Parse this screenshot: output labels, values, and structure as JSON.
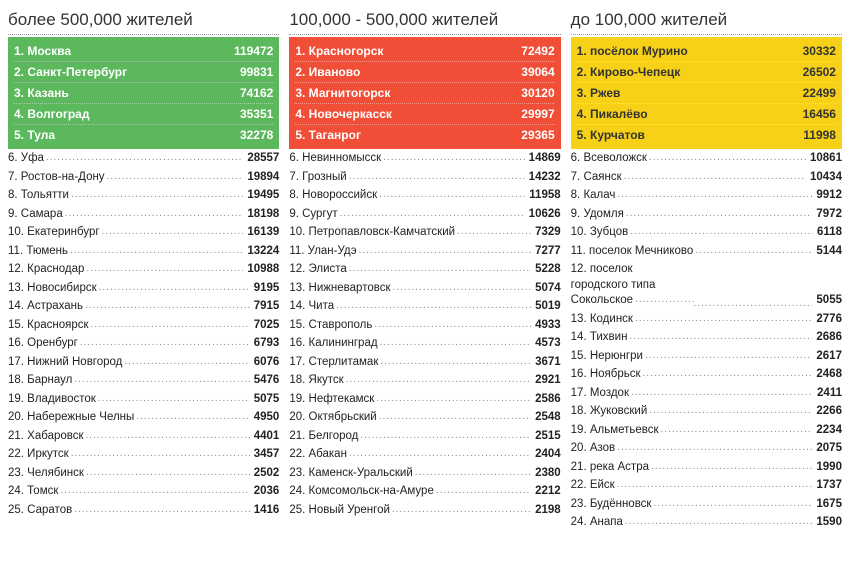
{
  "columns": [
    {
      "title": "более 500,000 жителей",
      "top_bg": "#5cb85c",
      "top_text": "#ffffff",
      "top5": [
        {
          "rank": "1.",
          "name": "Москва",
          "value": "119472"
        },
        {
          "rank": "2.",
          "name": "Санкт-Петербург",
          "value": "99831"
        },
        {
          "rank": "3.",
          "name": "Казань",
          "value": "74162"
        },
        {
          "rank": "4.",
          "name": "Волгоград",
          "value": "35351"
        },
        {
          "rank": "5.",
          "name": "Тула",
          "value": "32278"
        }
      ],
      "rest": [
        {
          "rank": "6.",
          "name": "Уфа",
          "value": "28557"
        },
        {
          "rank": "7.",
          "name": "Ростов-на-Дону",
          "value": "19894"
        },
        {
          "rank": "8.",
          "name": "Тольятти",
          "value": "19495"
        },
        {
          "rank": "9.",
          "name": "Самара",
          "value": "18198"
        },
        {
          "rank": "10.",
          "name": "Екатеринбург",
          "value": "16139"
        },
        {
          "rank": "11.",
          "name": "Тюмень",
          "value": "13224"
        },
        {
          "rank": "12.",
          "name": "Краснодар",
          "value": "10988"
        },
        {
          "rank": "13.",
          "name": "Новосибирск",
          "value": "9195"
        },
        {
          "rank": "14.",
          "name": "Астрахань",
          "value": "7915"
        },
        {
          "rank": "15.",
          "name": "Красноярск",
          "value": "7025"
        },
        {
          "rank": "16.",
          "name": "Оренбург",
          "value": "6793"
        },
        {
          "rank": "17.",
          "name": "Нижний Новгород",
          "value": "6076"
        },
        {
          "rank": "18.",
          "name": "Барнаул",
          "value": "5476"
        },
        {
          "rank": "19.",
          "name": "Владивосток",
          "value": "5075"
        },
        {
          "rank": "20.",
          "name": "Набережные Челны",
          "value": "4950"
        },
        {
          "rank": "21.",
          "name": "Хабаровск",
          "value": "4401"
        },
        {
          "rank": "22.",
          "name": "Иркутск",
          "value": "3457"
        },
        {
          "rank": "23.",
          "name": "Челябинск",
          "value": "2502"
        },
        {
          "rank": "24.",
          "name": "Томск",
          "value": "2036"
        },
        {
          "rank": "25.",
          "name": "Саратов",
          "value": "1416"
        }
      ]
    },
    {
      "title": "100,000 - 500,000 жителей",
      "top_bg": "#f04e37",
      "top_text": "#ffffff",
      "top5": [
        {
          "rank": "1.",
          "name": "Красногорск",
          "value": "72492"
        },
        {
          "rank": "2.",
          "name": "Иваново",
          "value": "39064"
        },
        {
          "rank": "3.",
          "name": "Магнитогорск",
          "value": "30120"
        },
        {
          "rank": "4.",
          "name": "Новочеркасск",
          "value": "29997"
        },
        {
          "rank": "5.",
          "name": "Таганрог",
          "value": "29365"
        }
      ],
      "rest": [
        {
          "rank": "6.",
          "name": "Невинномысск",
          "value": "14869"
        },
        {
          "rank": "7.",
          "name": "Грозный",
          "value": "14232"
        },
        {
          "rank": "8.",
          "name": "Новороссийск",
          "value": "11958"
        },
        {
          "rank": "9.",
          "name": "Сургут",
          "value": "10626"
        },
        {
          "rank": "10.",
          "name": "Петропавловск-Камчатский",
          "value": "7329"
        },
        {
          "rank": "11.",
          "name": "Улан-Удэ",
          "value": "7277"
        },
        {
          "rank": "12.",
          "name": "Элиста",
          "value": "5228"
        },
        {
          "rank": "13.",
          "name": "Нижневартовск",
          "value": "5074"
        },
        {
          "rank": "14.",
          "name": "Чита",
          "value": "5019"
        },
        {
          "rank": "15.",
          "name": "Ставрополь",
          "value": "4933"
        },
        {
          "rank": "16.",
          "name": "Калининград",
          "value": "4573"
        },
        {
          "rank": "17.",
          "name": "Стерлитамак",
          "value": "3671"
        },
        {
          "rank": "18.",
          "name": "Якутск",
          "value": "2921"
        },
        {
          "rank": "19.",
          "name": "Нефтекамск",
          "value": "2586"
        },
        {
          "rank": "20.",
          "name": "Октябрьский",
          "value": "2548"
        },
        {
          "rank": "21.",
          "name": "Белгород",
          "value": "2515"
        },
        {
          "rank": "22.",
          "name": "Абакан",
          "value": "2404"
        },
        {
          "rank": "23.",
          "name": "Каменск-Уральский",
          "value": "2380"
        },
        {
          "rank": "24.",
          "name": "Комсомольск-на-Амуре",
          "value": "2212"
        },
        {
          "rank": "25.",
          "name": "Новый Уренгой",
          "value": "2198"
        }
      ]
    },
    {
      "title": "до 100,000 жителей",
      "top_bg": "#f7d117",
      "top_text": "#333333",
      "top5": [
        {
          "rank": "1.",
          "name": "посёлок Мурино",
          "value": "30332"
        },
        {
          "rank": "2.",
          "name": "Кирово-Чепецк",
          "value": "26502"
        },
        {
          "rank": "3.",
          "name": "Ржев",
          "value": "22499"
        },
        {
          "rank": "4.",
          "name": "Пикалёво",
          "value": "16456"
        },
        {
          "rank": "5.",
          "name": "Курчатов",
          "value": "11998"
        }
      ],
      "rest": [
        {
          "rank": "6.",
          "name": "Всеволожск",
          "value": "10861"
        },
        {
          "rank": "7.",
          "name": "Саянск",
          "value": "10434"
        },
        {
          "rank": "8.",
          "name": "Калач",
          "value": "9912"
        },
        {
          "rank": "9.",
          "name": "Удомля",
          "value": "7972"
        },
        {
          "rank": "10.",
          "name": "Зубцов",
          "value": "6118"
        },
        {
          "rank": "11.",
          "name": "поселок Мечниково",
          "value": "5144"
        },
        {
          "rank": "12.",
          "name": "поселок городского типа Сокольское",
          "value": "5055",
          "wrap": true
        },
        {
          "rank": "13.",
          "name": "Кодинск",
          "value": "2776"
        },
        {
          "rank": "14.",
          "name": "Тихвин",
          "value": "2686"
        },
        {
          "rank": "15.",
          "name": "Нерюнгри",
          "value": "2617"
        },
        {
          "rank": "16.",
          "name": "Ноябрьск",
          "value": "2468"
        },
        {
          "rank": "17.",
          "name": "Моздок",
          "value": "2411"
        },
        {
          "rank": "18.",
          "name": "Жуковский",
          "value": "2266"
        },
        {
          "rank": "19.",
          "name": "Альметьевск",
          "value": "2234"
        },
        {
          "rank": "20.",
          "name": "Азов",
          "value": "2075"
        },
        {
          "rank": "21.",
          "name": "река Астра",
          "value": "1990"
        },
        {
          "rank": "22.",
          "name": "Ейск",
          "value": "1737"
        },
        {
          "rank": "23.",
          "name": "Будённовск",
          "value": "1675"
        },
        {
          "rank": "24.",
          "name": "Анапа",
          "value": "1590"
        }
      ]
    }
  ]
}
